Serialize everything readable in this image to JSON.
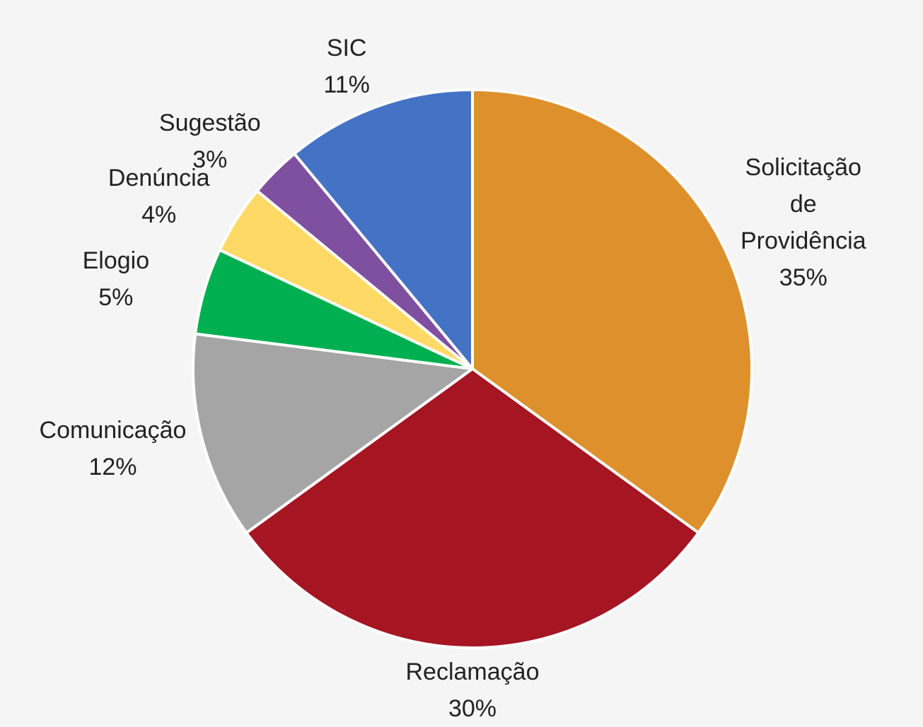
{
  "chart_data": {
    "type": "pie",
    "categories": [
      "Solicitação de Providência",
      "Reclamação",
      "Comunicação",
      "Elogio",
      "Denúncia",
      "Sugestão",
      "SIC"
    ],
    "values": [
      35,
      30,
      12,
      5,
      4,
      3,
      11
    ],
    "value_labels": [
      "35%",
      "30%",
      "12%",
      "5%",
      "4%",
      "3%",
      "11%"
    ],
    "colors": [
      "#dd902c",
      "#a51522",
      "#a5a5a5",
      "#00b050",
      "#ffd966",
      "#7f4fa0",
      "#4472c4"
    ]
  }
}
